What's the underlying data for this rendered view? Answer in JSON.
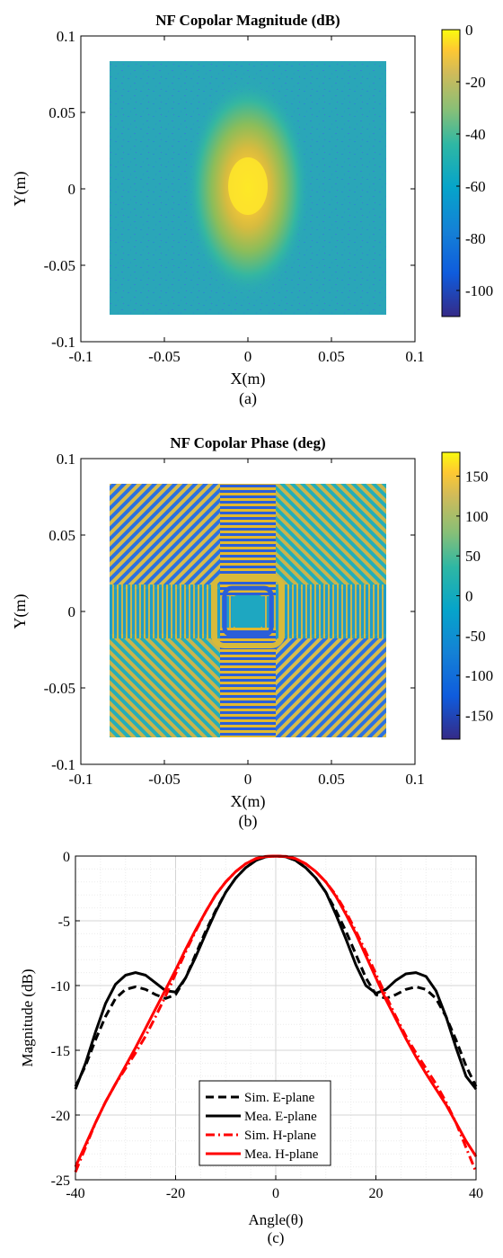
{
  "panel_a": {
    "title": "NF Copolar Magnitude (dB)",
    "caption": "(a)",
    "chart_data": {
      "type": "heatmap",
      "title": "NF Copolar Magnitude (dB)",
      "xlabel": "X(m)",
      "ylabel": "Y(m)",
      "xlim": [
        -0.1,
        0.1
      ],
      "ylim": [
        -0.1,
        0.1
      ],
      "xticks": [
        "-0.1",
        "-0.05",
        "0",
        "0.05",
        "0.1"
      ],
      "yticks": [
        "0.1",
        "0.05",
        "0",
        "-0.05",
        "-0.1"
      ],
      "data_extent": [
        -0.082,
        0.082
      ],
      "colorbar": {
        "range": [
          -110,
          0
        ],
        "ticks": [
          "0",
          "-20",
          "-40",
          "-60",
          "-80",
          "-100"
        ]
      },
      "colormap": "parula",
      "peak": {
        "x": 0,
        "y": 0,
        "value_db": 0
      },
      "background_level_db": -60
    }
  },
  "panel_b": {
    "title": "NF Copolar Phase (deg)",
    "caption": "(b)",
    "chart_data": {
      "type": "heatmap",
      "title": "NF Copolar Phase (deg)",
      "xlabel": "X(m)",
      "ylabel": "Y(m)",
      "xlim": [
        -0.1,
        0.1
      ],
      "ylim": [
        -0.1,
        0.1
      ],
      "xticks": [
        "-0.1",
        "-0.05",
        "0",
        "0.05",
        "0.1"
      ],
      "yticks": [
        "0.1",
        "0.05",
        "0",
        "-0.05",
        "-0.1"
      ],
      "data_extent": [
        -0.082,
        0.082
      ],
      "colorbar": {
        "range": [
          -180,
          180
        ],
        "ticks": [
          "150",
          "100",
          "50",
          "0",
          "-50",
          "-100",
          "-150"
        ]
      },
      "colormap": "parula"
    }
  },
  "panel_c": {
    "caption": "(c)",
    "chart_data": {
      "type": "line",
      "xlabel": "Angle(θ)",
      "ylabel": "Magnitude (dB)",
      "xlim": [
        -40,
        40
      ],
      "ylim": [
        -25,
        0
      ],
      "xticks": [
        "-40",
        "-20",
        "0",
        "20",
        "40"
      ],
      "yticks": [
        "0",
        "-5",
        "-10",
        "-15",
        "-20",
        "-25"
      ],
      "grid": true,
      "legend_position": "lower-center",
      "series": [
        {
          "name": "Sim. E-plane",
          "color": "#000000",
          "dash": "dashed",
          "x": [
            -40,
            -38,
            -36,
            -34,
            -32,
            -30,
            -28,
            -26,
            -24,
            -22,
            -20,
            -18,
            -16,
            -14,
            -12,
            -10,
            -8,
            -6,
            -4,
            -2,
            0,
            2,
            4,
            6,
            8,
            10,
            12,
            14,
            16,
            18,
            20,
            22,
            24,
            26,
            28,
            30,
            32,
            34,
            36,
            38,
            40
          ],
          "y": [
            -17.8,
            -16.2,
            -14.2,
            -12.4,
            -11.0,
            -10.3,
            -10.1,
            -10.3,
            -10.7,
            -11.0,
            -10.7,
            -9.4,
            -7.6,
            -5.8,
            -4.2,
            -2.8,
            -1.7,
            -0.9,
            -0.35,
            -0.05,
            0,
            -0.05,
            -0.35,
            -0.9,
            -1.7,
            -2.8,
            -4.2,
            -5.8,
            -7.6,
            -9.4,
            -10.7,
            -11.0,
            -10.7,
            -10.3,
            -10.1,
            -10.3,
            -11.0,
            -12.4,
            -14.2,
            -16.2,
            -17.8
          ]
        },
        {
          "name": "Mea. E-plane",
          "color": "#000000",
          "dash": "solid",
          "x": [
            -40,
            -38,
            -36,
            -34,
            -32,
            -30,
            -28,
            -26,
            -24,
            -22,
            -20,
            -18,
            -16,
            -14,
            -12,
            -10,
            -8,
            -6,
            -4,
            -2,
            0,
            2,
            4,
            6,
            8,
            10,
            12,
            14,
            16,
            18,
            20,
            22,
            24,
            26,
            28,
            30,
            32,
            34,
            36,
            38,
            40
          ],
          "y": [
            -18.0,
            -16.0,
            -13.6,
            -11.4,
            -9.9,
            -9.2,
            -9.0,
            -9.2,
            -9.8,
            -10.4,
            -10.5,
            -9.4,
            -7.8,
            -6.0,
            -4.3,
            -2.8,
            -1.7,
            -0.9,
            -0.35,
            -0.05,
            0,
            -0.05,
            -0.35,
            -0.9,
            -1.7,
            -2.8,
            -4.5,
            -6.4,
            -8.4,
            -10.0,
            -10.6,
            -10.3,
            -9.6,
            -9.1,
            -9.0,
            -9.3,
            -10.4,
            -12.4,
            -14.8,
            -17.0,
            -18.0
          ]
        },
        {
          "name": "Sim. H-plane",
          "color": "#ff0000",
          "dash": "dashdot",
          "x": [
            -40,
            -38,
            -36,
            -34,
            -32,
            -30,
            -28,
            -26,
            -24,
            -22,
            -20,
            -18,
            -16,
            -14,
            -12,
            -10,
            -8,
            -6,
            -4,
            -2,
            0,
            2,
            4,
            6,
            8,
            10,
            12,
            14,
            16,
            18,
            20,
            22,
            24,
            26,
            28,
            30,
            32,
            34,
            36,
            38,
            40
          ],
          "y": [
            -24.4,
            -22.5,
            -20.6,
            -19.0,
            -17.6,
            -16.4,
            -15.2,
            -13.9,
            -12.4,
            -10.8,
            -9.1,
            -7.4,
            -5.8,
            -4.3,
            -3.0,
            -2.0,
            -1.2,
            -0.6,
            -0.2,
            -0.03,
            0,
            -0.03,
            -0.2,
            -0.6,
            -1.2,
            -2.0,
            -3.0,
            -4.3,
            -5.8,
            -7.4,
            -9.1,
            -10.8,
            -12.4,
            -13.9,
            -15.2,
            -16.4,
            -17.6,
            -19.0,
            -20.6,
            -22.5,
            -24.4
          ]
        },
        {
          "name": "Mea. H-plane",
          "color": "#ff0000",
          "dash": "solid",
          "x": [
            -40,
            -38,
            -36,
            -34,
            -32,
            -30,
            -28,
            -26,
            -24,
            -22,
            -20,
            -18,
            -16,
            -14,
            -12,
            -10,
            -8,
            -6,
            -4,
            -2,
            0,
            2,
            4,
            6,
            8,
            10,
            12,
            14,
            16,
            18,
            20,
            22,
            24,
            26,
            28,
            30,
            32,
            34,
            36,
            38,
            40
          ],
          "y": [
            -24.0,
            -22.3,
            -20.6,
            -19.0,
            -17.6,
            -16.2,
            -14.8,
            -13.3,
            -11.8,
            -10.3,
            -8.8,
            -7.2,
            -5.7,
            -4.3,
            -3.0,
            -2.0,
            -1.2,
            -0.6,
            -0.2,
            -0.03,
            0,
            -0.03,
            -0.2,
            -0.6,
            -1.2,
            -2.0,
            -3.1,
            -4.5,
            -6.0,
            -7.7,
            -9.4,
            -11.1,
            -12.6,
            -14.1,
            -15.5,
            -16.8,
            -18.0,
            -19.2,
            -20.6,
            -22.0,
            -23.2
          ]
        }
      ]
    }
  }
}
